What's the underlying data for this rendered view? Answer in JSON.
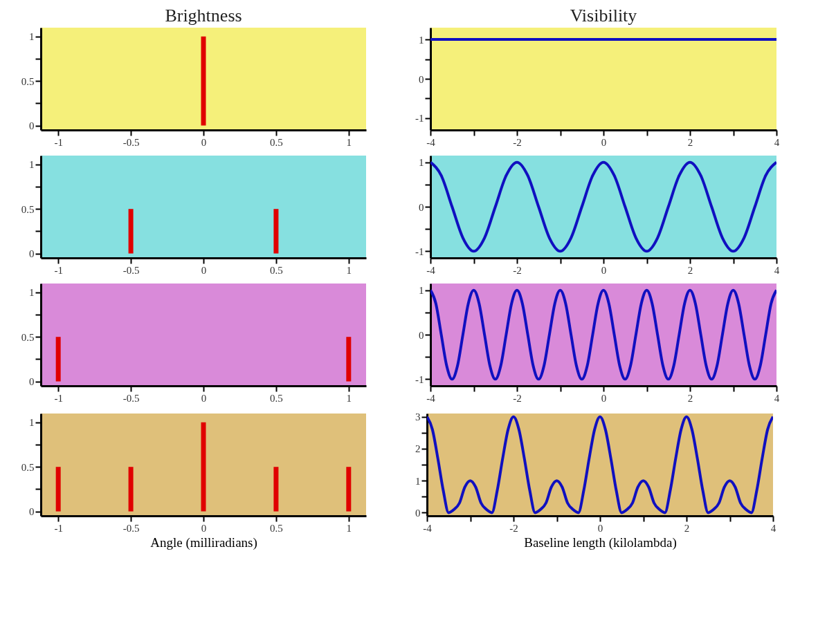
{
  "chart_data": [
    {
      "type": "bar",
      "title": "Brightness",
      "x": [
        0
      ],
      "values": [
        1
      ],
      "color": "#e00000",
      "xlim": [
        -1.12,
        1.12
      ],
      "ylim": [
        -0.05,
        1.1
      ],
      "xticks": [
        -1,
        -0.5,
        0,
        0.5,
        1
      ],
      "yticks": [
        0,
        {
          "value": 0.25,
          "label": null
        },
        0.5,
        {
          "value": 0.75,
          "label": null
        },
        1
      ],
      "grid": false
    },
    {
      "type": "line",
      "title": "Visibility",
      "x": [
        -4,
        4
      ],
      "values": [
        1,
        1
      ],
      "color": "#1010c0",
      "xlim": [
        -4,
        4
      ],
      "ylim": [
        -1.3,
        1.3
      ],
      "xticks": [
        -4,
        {
          "value": -3,
          "label": null
        },
        -2,
        {
          "value": -1,
          "label": null
        },
        0,
        {
          "value": 1,
          "label": null
        },
        2,
        {
          "value": 3,
          "label": null
        },
        4
      ],
      "yticks": [
        -1,
        {
          "value": -0.5,
          "label": null
        },
        0,
        {
          "value": 0.5,
          "label": null
        },
        1
      ],
      "grid": false
    },
    {
      "type": "bar",
      "x": [
        -0.5,
        0.5
      ],
      "values": [
        0.5,
        0.5
      ],
      "color": "#e00000",
      "xlim": [
        -1.12,
        1.12
      ],
      "ylim": [
        -0.05,
        1.1
      ],
      "xticks": [
        -1,
        -0.5,
        0,
        0.5,
        1
      ],
      "yticks": [
        0,
        {
          "value": 0.25,
          "label": null
        },
        0.5,
        {
          "value": 0.75,
          "label": null
        },
        1
      ],
      "grid": false
    },
    {
      "type": "line",
      "x": [
        -4,
        -3.75,
        -3.5,
        -3.25,
        -3,
        -2.75,
        -2.5,
        -2.25,
        -2,
        -1.75,
        -1.5,
        -1.25,
        -1,
        -0.75,
        -0.5,
        -0.25,
        0,
        0.25,
        0.5,
        0.75,
        1,
        1.25,
        1.5,
        1.75,
        2,
        2.25,
        2.5,
        2.75,
        3,
        3.25,
        3.5,
        3.75,
        4
      ],
      "values": [
        1,
        0.7,
        0,
        -0.7,
        -1,
        -0.7,
        0,
        0.7,
        1,
        0.7,
        0,
        -0.7,
        -1,
        -0.7,
        0,
        0.7,
        1,
        0.7,
        0,
        -0.7,
        -1,
        -0.7,
        0,
        0.7,
        1,
        0.7,
        0,
        -0.7,
        -1,
        -0.7,
        0,
        0.7,
        1
      ],
      "color": "#1010c0",
      "xlim": [
        -4,
        4
      ],
      "ylim": [
        -1.15,
        1.15
      ],
      "xticks": [
        -4,
        {
          "value": -3,
          "label": null
        },
        -2,
        {
          "value": -1,
          "label": null
        },
        0,
        {
          "value": 1,
          "label": null
        },
        2,
        {
          "value": 3,
          "label": null
        },
        4
      ],
      "yticks": [
        -1,
        {
          "value": -0.5,
          "label": null
        },
        0,
        {
          "value": 0.5,
          "label": null
        },
        1
      ],
      "grid": false
    },
    {
      "type": "bar",
      "x": [
        -1,
        1
      ],
      "values": [
        0.5,
        0.5
      ],
      "color": "#e00000",
      "xlim": [
        -1.12,
        1.12
      ],
      "ylim": [
        -0.05,
        1.1
      ],
      "xticks": [
        -1,
        -0.5,
        0,
        0.5,
        1
      ],
      "yticks": [
        0,
        {
          "value": 0.25,
          "label": null
        },
        0.5,
        {
          "value": 0.75,
          "label": null
        },
        1
      ],
      "grid": false
    },
    {
      "type": "line",
      "x": [
        -4,
        -3.875,
        -3.75,
        -3.625,
        -3.5,
        -3.375,
        -3.25,
        -3.125,
        -3,
        -2.875,
        -2.75,
        -2.625,
        -2.5,
        -2.375,
        -2.25,
        -2.125,
        -2,
        -1.875,
        -1.75,
        -1.625,
        -1.5,
        -1.375,
        -1.25,
        -1.125,
        -1,
        -0.875,
        -0.75,
        -0.625,
        -0.5,
        -0.375,
        -0.25,
        -0.125,
        0,
        0.125,
        0.25,
        0.375,
        0.5,
        0.625,
        0.75,
        0.875,
        1,
        1.125,
        1.25,
        1.375,
        1.5,
        1.625,
        1.75,
        1.875,
        2,
        2.125,
        2.25,
        2.375,
        2.5,
        2.625,
        2.75,
        2.875,
        3,
        3.125,
        3.25,
        3.375,
        3.5,
        3.625,
        3.75,
        3.875,
        4
      ],
      "values": [
        1,
        0.7,
        0,
        -0.7,
        -1,
        -0.7,
        0,
        0.7,
        1,
        0.7,
        0,
        -0.7,
        -1,
        -0.7,
        0,
        0.7,
        1,
        0.7,
        0,
        -0.7,
        -1,
        -0.7,
        0,
        0.7,
        1,
        0.7,
        0,
        -0.7,
        -1,
        -0.7,
        0,
        0.7,
        1,
        0.7,
        0,
        -0.7,
        -1,
        -0.7,
        0,
        0.7,
        1,
        0.7,
        0,
        -0.7,
        -1,
        -0.7,
        0,
        0.7,
        1,
        0.7,
        0,
        -0.7,
        -1,
        -0.7,
        0,
        0.7,
        1,
        0.7,
        0,
        -0.7,
        -1,
        -0.7,
        0,
        0.7,
        1
      ],
      "color": "#1010c0",
      "xlim": [
        -4,
        4
      ],
      "ylim": [
        -1.15,
        1.15
      ],
      "xticks": [
        -4,
        {
          "value": -3,
          "label": null
        },
        -2,
        {
          "value": -1,
          "label": null
        },
        0,
        {
          "value": 1,
          "label": null
        },
        2,
        {
          "value": 3,
          "label": null
        },
        4
      ],
      "yticks": [
        -1,
        {
          "value": -0.5,
          "label": null
        },
        0,
        {
          "value": 0.5,
          "label": null
        },
        1
      ],
      "grid": false
    },
    {
      "type": "bar",
      "xlabel": "Angle (milliradians)",
      "x": [
        -1,
        -0.5,
        0,
        0.5,
        1
      ],
      "values": [
        0.5,
        0.5,
        1,
        0.5,
        0.5
      ],
      "color": "#e00000",
      "xlim": [
        -1.12,
        1.12
      ],
      "ylim": [
        -0.05,
        1.1
      ],
      "xticks": [
        -1,
        -0.5,
        0,
        0.5,
        1
      ],
      "yticks": [
        0,
        {
          "value": 0.25,
          "label": null
        },
        0.5,
        {
          "value": 0.75,
          "label": null
        },
        1
      ],
      "grid": false
    },
    {
      "type": "line",
      "xlabel": "Baseline length (kilolambda)",
      "x": [
        -4,
        -3.875,
        -3.75,
        -3.625,
        -3.5,
        -3.375,
        -3.25,
        -3.125,
        -3,
        -2.875,
        -2.75,
        -2.625,
        -2.5,
        -2.375,
        -2.25,
        -2.125,
        -2,
        -1.875,
        -1.75,
        -1.625,
        -1.5,
        -1.375,
        -1.25,
        -1.125,
        -1,
        -0.875,
        -0.75,
        -0.625,
        -0.5,
        -0.375,
        -0.25,
        -0.125,
        0,
        0.125,
        0.25,
        0.375,
        0.5,
        0.625,
        0.75,
        0.875,
        1,
        1.125,
        1.25,
        1.375,
        1.5,
        1.625,
        1.75,
        1.875,
        2,
        2.125,
        2.25,
        2.375,
        2.5,
        2.625,
        2.75,
        2.875,
        3,
        3.125,
        3.25,
        3.375,
        3.5,
        3.625,
        3.75,
        3.875,
        4
      ],
      "values": [
        3,
        2.6,
        1.7,
        0.7,
        0,
        0.1,
        0.3,
        0.8,
        1,
        0.8,
        0.3,
        0.1,
        0,
        0.7,
        1.7,
        2.6,
        3,
        2.6,
        1.7,
        0.7,
        0,
        0.1,
        0.3,
        0.8,
        1,
        0.8,
        0.3,
        0.1,
        0,
        0.7,
        1.7,
        2.6,
        3,
        2.6,
        1.7,
        0.7,
        0,
        0.1,
        0.3,
        0.8,
        1,
        0.8,
        0.3,
        0.1,
        0,
        0.7,
        1.7,
        2.6,
        3,
        2.6,
        1.7,
        0.7,
        0,
        0.1,
        0.3,
        0.8,
        1,
        0.8,
        0.3,
        0.1,
        0,
        0.7,
        1.7,
        2.6,
        3
      ],
      "color": "#1010c0",
      "xlim": [
        -4,
        4
      ],
      "ylim": [
        -0.1,
        3.1
      ],
      "xticks": [
        -4,
        {
          "value": -3,
          "label": null
        },
        -2,
        {
          "value": -1,
          "label": null
        },
        0,
        {
          "value": 1,
          "label": null
        },
        2,
        {
          "value": 3,
          "label": null
        },
        4
      ],
      "yticks": [
        0,
        {
          "value": 0.5,
          "label": null
        },
        1,
        {
          "value": 1.5,
          "label": null
        },
        2,
        {
          "value": 2.5,
          "label": null
        },
        3
      ],
      "grid": false
    }
  ]
}
